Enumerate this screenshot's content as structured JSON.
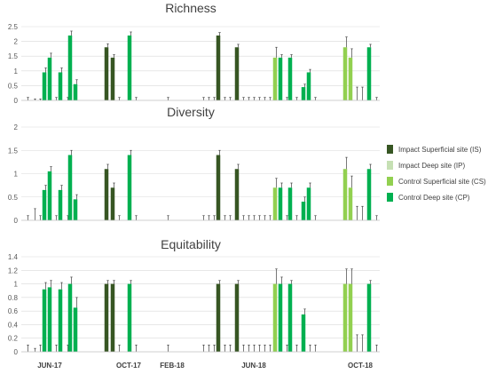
{
  "colors": {
    "IS": "#375623",
    "IP": "#c6e0b4",
    "CS": "#92d050",
    "CP": "#00b050",
    "gridline": "#d9d9d9",
    "axis": "#bfbfbf",
    "errorbar": "#404040"
  },
  "legend": {
    "items": [
      {
        "key": "IS",
        "label": "Impact Superficial site (IS)"
      },
      {
        "key": "IP",
        "label": "Impact Deep site (IP)"
      },
      {
        "key": "CS",
        "label": "Control Superficial site (CS)"
      },
      {
        "key": "CP",
        "label": "Control Deep site (CP)"
      }
    ]
  },
  "x_axis_labels": [
    "JUN-17",
    "OCT-17",
    "FEB-18",
    "JUN-18",
    "OCT-18"
  ],
  "chart_data": [
    {
      "type": "bar",
      "title": "Richness",
      "ylim": [
        0,
        2.5
      ],
      "yticks": [
        "0",
        "0.5",
        "1",
        "1.5",
        "2",
        "2.5"
      ],
      "grid": true,
      "legend_position": "right",
      "bars": [
        {
          "s": "IS",
          "v": 0,
          "e": 0.1
        },
        {
          "s": "IP",
          "v": 0,
          "e": 0.05
        },
        {
          "s": "CS",
          "v": 0,
          "e": 0.05
        },
        {
          "s": "CP",
          "v": 0.95,
          "e": 0.15
        },
        {
          "s": "CP",
          "v": 1.45,
          "e": 0.15
        },
        {
          "s": "CP",
          "v": 0,
          "e": 0.1
        },
        {
          "s": "CP",
          "v": 0.95,
          "e": 0.15
        },
        {
          "s": "CP",
          "v": 0,
          "e": 0.1
        },
        {
          "s": "CP",
          "v": 2.2,
          "e": 0.15
        },
        {
          "s": "CP",
          "v": 0.55,
          "e": 0.15
        },
        {
          "s": "IS",
          "v": 1.8,
          "e": 0.12
        },
        {
          "s": "IS",
          "v": 1.45,
          "e": 0.1
        },
        {
          "s": "IS",
          "v": 0,
          "e": 0.1
        },
        {
          "s": "CP",
          "v": 2.2,
          "e": 0.12
        },
        {
          "s": "CP",
          "v": 0,
          "e": 0.1
        },
        {
          "s": "IS",
          "v": 0,
          "e": 0.1
        },
        {
          "s": "IS",
          "v": 0,
          "e": 0.1
        },
        {
          "s": "IS",
          "v": 0,
          "e": 0.1
        },
        {
          "s": "IS",
          "v": 0,
          "e": 0.1
        },
        {
          "s": "IS",
          "v": 2.2,
          "e": 0.1
        },
        {
          "s": "IS",
          "v": 0,
          "e": 0.1
        },
        {
          "s": "IS",
          "v": 0,
          "e": 0.1
        },
        {
          "s": "IS",
          "v": 1.8,
          "e": 0.1
        },
        {
          "s": "IS",
          "v": 0,
          "e": 0.1
        },
        {
          "s": "IS",
          "v": 0,
          "e": 0.1
        },
        {
          "s": "IS",
          "v": 0,
          "e": 0.1
        },
        {
          "s": "IS",
          "v": 0,
          "e": 0.1
        },
        {
          "s": "IS",
          "v": 0,
          "e": 0.1
        },
        {
          "s": "IS",
          "v": 0,
          "e": 0.1
        },
        {
          "s": "CS",
          "v": 1.45,
          "e": 0.35
        },
        {
          "s": "CP",
          "v": 1.45,
          "e": 0.1
        },
        {
          "s": "CP",
          "v": 0,
          "e": 0.1
        },
        {
          "s": "CP",
          "v": 1.45,
          "e": 0.1
        },
        {
          "s": "CP",
          "v": 0,
          "e": 0.1
        },
        {
          "s": "CP",
          "v": 0.45,
          "e": 0.1
        },
        {
          "s": "CP",
          "v": 0.95,
          "e": 0.1
        },
        {
          "s": "CP",
          "v": 0,
          "e": 0.1
        },
        {
          "s": "CS",
          "v": 1.8,
          "e": 0.35
        },
        {
          "s": "CS",
          "v": 1.45,
          "e": 0.3
        },
        {
          "s": "CS",
          "v": 0,
          "e": 0.45
        },
        {
          "s": "CS",
          "v": 0,
          "e": 0.45
        },
        {
          "s": "CP",
          "v": 1.8,
          "e": 0.1
        },
        {
          "s": "CP",
          "v": 0,
          "e": 0.1
        }
      ]
    },
    {
      "type": "bar",
      "title": "Diversity",
      "ylim": [
        0,
        2
      ],
      "yticks": [
        "0",
        "0.5",
        "1",
        "1.5",
        "2"
      ],
      "grid": true,
      "bars": [
        {
          "s": "IS",
          "v": 0,
          "e": 0.1
        },
        {
          "s": "IP",
          "v": 0,
          "e": 0.25
        },
        {
          "s": "CS",
          "v": 0,
          "e": 0.1
        },
        {
          "s": "CP",
          "v": 0.65,
          "e": 0.1
        },
        {
          "s": "CP",
          "v": 1.05,
          "e": 0.1
        },
        {
          "s": "CP",
          "v": 0,
          "e": 0.1
        },
        {
          "s": "CP",
          "v": 0.65,
          "e": 0.1
        },
        {
          "s": "CP",
          "v": 0,
          "e": 0.1
        },
        {
          "s": "CP",
          "v": 1.4,
          "e": 0.1
        },
        {
          "s": "CP",
          "v": 0.45,
          "e": 0.1
        },
        {
          "s": "IS",
          "v": 1.1,
          "e": 0.1
        },
        {
          "s": "IS",
          "v": 0.7,
          "e": 0.1
        },
        {
          "s": "IS",
          "v": 0,
          "e": 0.1
        },
        {
          "s": "CP",
          "v": 1.4,
          "e": 0.1
        },
        {
          "s": "CP",
          "v": 0,
          "e": 0.1
        },
        {
          "s": "IS",
          "v": 0,
          "e": 0.1
        },
        {
          "s": "IS",
          "v": 0,
          "e": 0.1
        },
        {
          "s": "IS",
          "v": 0,
          "e": 0.1
        },
        {
          "s": "IS",
          "v": 0,
          "e": 0.1
        },
        {
          "s": "IS",
          "v": 1.4,
          "e": 0.1
        },
        {
          "s": "IS",
          "v": 0,
          "e": 0.1
        },
        {
          "s": "IS",
          "v": 0,
          "e": 0.1
        },
        {
          "s": "IS",
          "v": 1.1,
          "e": 0.1
        },
        {
          "s": "IS",
          "v": 0,
          "e": 0.1
        },
        {
          "s": "IS",
          "v": 0,
          "e": 0.1
        },
        {
          "s": "IS",
          "v": 0,
          "e": 0.1
        },
        {
          "s": "IS",
          "v": 0,
          "e": 0.1
        },
        {
          "s": "IS",
          "v": 0,
          "e": 0.1
        },
        {
          "s": "IS",
          "v": 0,
          "e": 0.1
        },
        {
          "s": "CS",
          "v": 0.7,
          "e": 0.2
        },
        {
          "s": "CP",
          "v": 0.7,
          "e": 0.1
        },
        {
          "s": "CP",
          "v": 0,
          "e": 0.1
        },
        {
          "s": "CP",
          "v": 0.7,
          "e": 0.1
        },
        {
          "s": "CP",
          "v": 0,
          "e": 0.1
        },
        {
          "s": "CP",
          "v": 0.4,
          "e": 0.1
        },
        {
          "s": "CP",
          "v": 0.7,
          "e": 0.1
        },
        {
          "s": "CP",
          "v": 0,
          "e": 0.1
        },
        {
          "s": "CS",
          "v": 1.1,
          "e": 0.25
        },
        {
          "s": "CS",
          "v": 0.7,
          "e": 0.25
        },
        {
          "s": "CS",
          "v": 0,
          "e": 0.3
        },
        {
          "s": "CS",
          "v": 0,
          "e": 0.3
        },
        {
          "s": "CP",
          "v": 1.1,
          "e": 0.1
        },
        {
          "s": "CP",
          "v": 0,
          "e": 0.1
        }
      ]
    },
    {
      "type": "bar",
      "title": "Equitability",
      "ylim": [
        0,
        1.4
      ],
      "yticks": [
        "0",
        "0.2",
        "0.4",
        "0.6",
        "0.8",
        "1",
        "1.2",
        "1.4"
      ],
      "grid": true,
      "bars": [
        {
          "s": "IS",
          "v": 0,
          "e": 0.1
        },
        {
          "s": "IP",
          "v": 0,
          "e": 0.05
        },
        {
          "s": "CS",
          "v": 0,
          "e": 0.1
        },
        {
          "s": "CP",
          "v": 0.92,
          "e": 0.1
        },
        {
          "s": "CP",
          "v": 0.95,
          "e": 0.1
        },
        {
          "s": "CP",
          "v": 0,
          "e": 0.1
        },
        {
          "s": "CP",
          "v": 0.92,
          "e": 0.1
        },
        {
          "s": "CP",
          "v": 0,
          "e": 0.1
        },
        {
          "s": "CP",
          "v": 1.0,
          "e": 0.1
        },
        {
          "s": "CP",
          "v": 0.65,
          "e": 0.15
        },
        {
          "s": "IS",
          "v": 1.0,
          "e": 0.05
        },
        {
          "s": "IS",
          "v": 1.0,
          "e": 0.05
        },
        {
          "s": "IS",
          "v": 0,
          "e": 0.1
        },
        {
          "s": "CP",
          "v": 1.0,
          "e": 0.05
        },
        {
          "s": "CP",
          "v": 0,
          "e": 0.1
        },
        {
          "s": "IS",
          "v": 0,
          "e": 0.1
        },
        {
          "s": "IS",
          "v": 0,
          "e": 0.1
        },
        {
          "s": "IS",
          "v": 0,
          "e": 0.1
        },
        {
          "s": "IS",
          "v": 0,
          "e": 0.1
        },
        {
          "s": "IS",
          "v": 1.0,
          "e": 0.05
        },
        {
          "s": "IS",
          "v": 0,
          "e": 0.1
        },
        {
          "s": "IS",
          "v": 0,
          "e": 0.1
        },
        {
          "s": "IS",
          "v": 1.0,
          "e": 0.05
        },
        {
          "s": "IS",
          "v": 0,
          "e": 0.1
        },
        {
          "s": "IS",
          "v": 0,
          "e": 0.1
        },
        {
          "s": "IS",
          "v": 0,
          "e": 0.1
        },
        {
          "s": "IS",
          "v": 0,
          "e": 0.1
        },
        {
          "s": "IS",
          "v": 0,
          "e": 0.1
        },
        {
          "s": "IS",
          "v": 0,
          "e": 0.1
        },
        {
          "s": "CS",
          "v": 1.0,
          "e": 0.22
        },
        {
          "s": "CP",
          "v": 1.0,
          "e": 0.1
        },
        {
          "s": "CP",
          "v": 0,
          "e": 0.1
        },
        {
          "s": "CP",
          "v": 1.0,
          "e": 0.05
        },
        {
          "s": "CP",
          "v": 0,
          "e": 0.1
        },
        {
          "s": "CP",
          "v": 0.55,
          "e": 0.08
        },
        {
          "s": "CP",
          "v": 0,
          "e": 0.1
        },
        {
          "s": "CP",
          "v": 0,
          "e": 0.1
        },
        {
          "s": "CS",
          "v": 1.0,
          "e": 0.22
        },
        {
          "s": "CS",
          "v": 1.0,
          "e": 0.22
        },
        {
          "s": "CS",
          "v": 0,
          "e": 0.25
        },
        {
          "s": "CS",
          "v": 0,
          "e": 0.25
        },
        {
          "s": "CP",
          "v": 1.0,
          "e": 0.05
        },
        {
          "s": "CP",
          "v": 0,
          "e": 0.1
        }
      ]
    }
  ]
}
